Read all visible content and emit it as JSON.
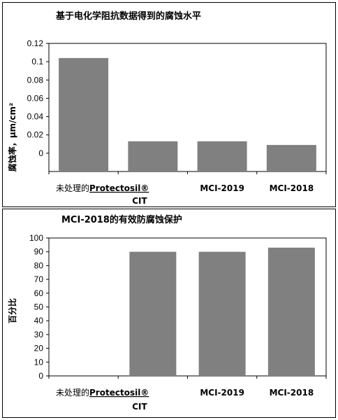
{
  "chart_data": [
    {
      "type": "bar",
      "title": "基于电化学阻抗数据得到的腐蚀水平",
      "ylabel": "腐蚀率，μm/cm²",
      "categories": [
        "未处理的",
        "Protectosil® CIT",
        "MCI-2019",
        "MCI-2018"
      ],
      "values": [
        0.104,
        0.013,
        0.013,
        0.009
      ],
      "ylim": [
        -0.02,
        0.12
      ],
      "yticks": [
        0,
        0.02,
        0.04,
        0.06,
        0.08,
        0.1,
        0.12
      ],
      "ytick_labels": [
        "0",
        "0.02",
        "0.04",
        "0.06",
        "0.08",
        "0.1",
        "0.12"
      ],
      "x_labels": [
        {
          "text": "未处理的Protectosil®",
          "line2": "CIT"
        },
        {
          "text": "MCI-2019"
        },
        {
          "text": "MCI-2018"
        }
      ],
      "grid": false,
      "bar_color": "#808080"
    },
    {
      "type": "bar",
      "title": "MCI-2018的有效防腐蚀保护",
      "ylabel": "百分比",
      "categories": [
        "未处理的",
        "Protectosil® CIT",
        "MCI-2019",
        "MCI-2018"
      ],
      "values": [
        0,
        90,
        90,
        93
      ],
      "ylim": [
        0,
        100
      ],
      "yticks": [
        0,
        10,
        20,
        30,
        40,
        50,
        60,
        70,
        80,
        90,
        100
      ],
      "ytick_labels": [
        "0",
        "10",
        "20",
        "30",
        "40",
        "50",
        "60",
        "70",
        "80",
        "90",
        "100"
      ],
      "x_labels": [
        {
          "text": "未处理的Protectosil®",
          "line2": "CIT"
        },
        {
          "text": "MCI-2019"
        },
        {
          "text": "MCI-2018"
        }
      ],
      "grid": false,
      "bar_color": "#808080"
    }
  ]
}
